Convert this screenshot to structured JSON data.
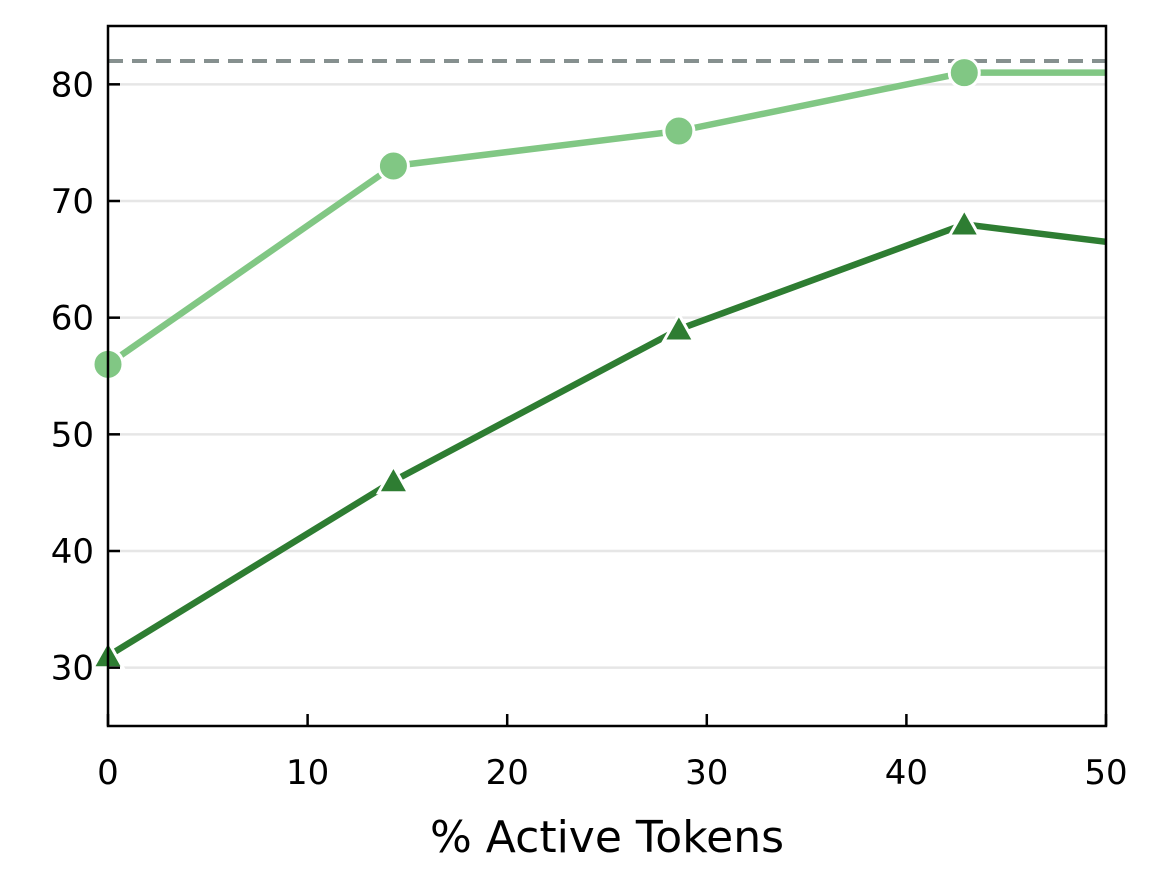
{
  "chart_data": {
    "type": "line",
    "title": "",
    "xlabel": "% Active Tokens",
    "ylabel": "",
    "xlim": [
      0,
      50
    ],
    "ylim": [
      25,
      85
    ],
    "xticks": [
      0,
      10,
      20,
      30,
      40,
      50
    ],
    "yticks": [
      30,
      40,
      50,
      60,
      70,
      80
    ],
    "xtick_labels": [
      "0",
      "10",
      "20",
      "30",
      "40",
      "50"
    ],
    "ytick_labels": [
      "30",
      "40",
      "50",
      "60",
      "70",
      "80"
    ],
    "grid": "horizontal",
    "reference_line": {
      "y": 82,
      "color": "#86908f",
      "style": "dashed"
    },
    "series": [
      {
        "color": "#81c784",
        "marker": "circle",
        "x": [
          0,
          14.3,
          28.6,
          42.9,
          50
        ],
        "y": [
          56,
          73,
          76,
          81,
          81
        ],
        "marker_mask": [
          true,
          true,
          true,
          true,
          false
        ]
      },
      {
        "color": "#2e7d32",
        "marker": "triangle",
        "x": [
          0,
          14.3,
          28.6,
          42.9,
          50
        ],
        "y": [
          31,
          46,
          59,
          68,
          66.5
        ],
        "marker_mask": [
          true,
          true,
          true,
          true,
          false
        ]
      }
    ]
  }
}
